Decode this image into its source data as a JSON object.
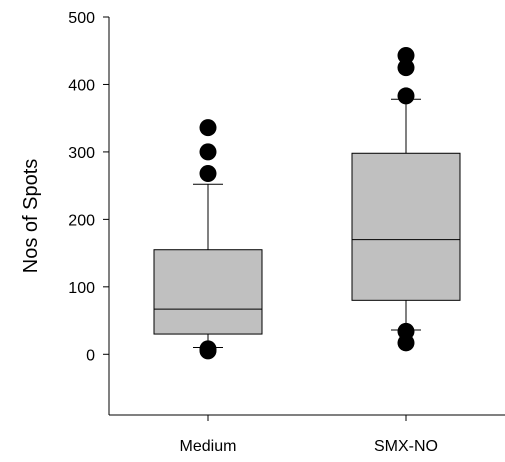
{
  "chart_data": {
    "type": "boxplot",
    "title": "",
    "xlabel": "",
    "ylabel": "Nos of Spots",
    "ylim": [
      -90,
      500
    ],
    "yticks": [
      0,
      100,
      200,
      300,
      400,
      500
    ],
    "grid": false,
    "legend": "none",
    "box_color": "#c0c0c0",
    "categories": [
      "Medium",
      "SMX-NO"
    ],
    "boxes": [
      {
        "category": "Medium",
        "whisker_low": 10,
        "q1": 30,
        "median": 67,
        "q3": 155,
        "whisker_high": 252,
        "outliers": [
          5,
          8,
          268,
          300,
          336
        ]
      },
      {
        "category": "SMX-NO",
        "whisker_low": 36,
        "q1": 80,
        "median": 170,
        "q3": 298,
        "whisker_high": 378,
        "outliers": [
          17,
          34,
          383,
          425,
          443
        ]
      }
    ]
  }
}
